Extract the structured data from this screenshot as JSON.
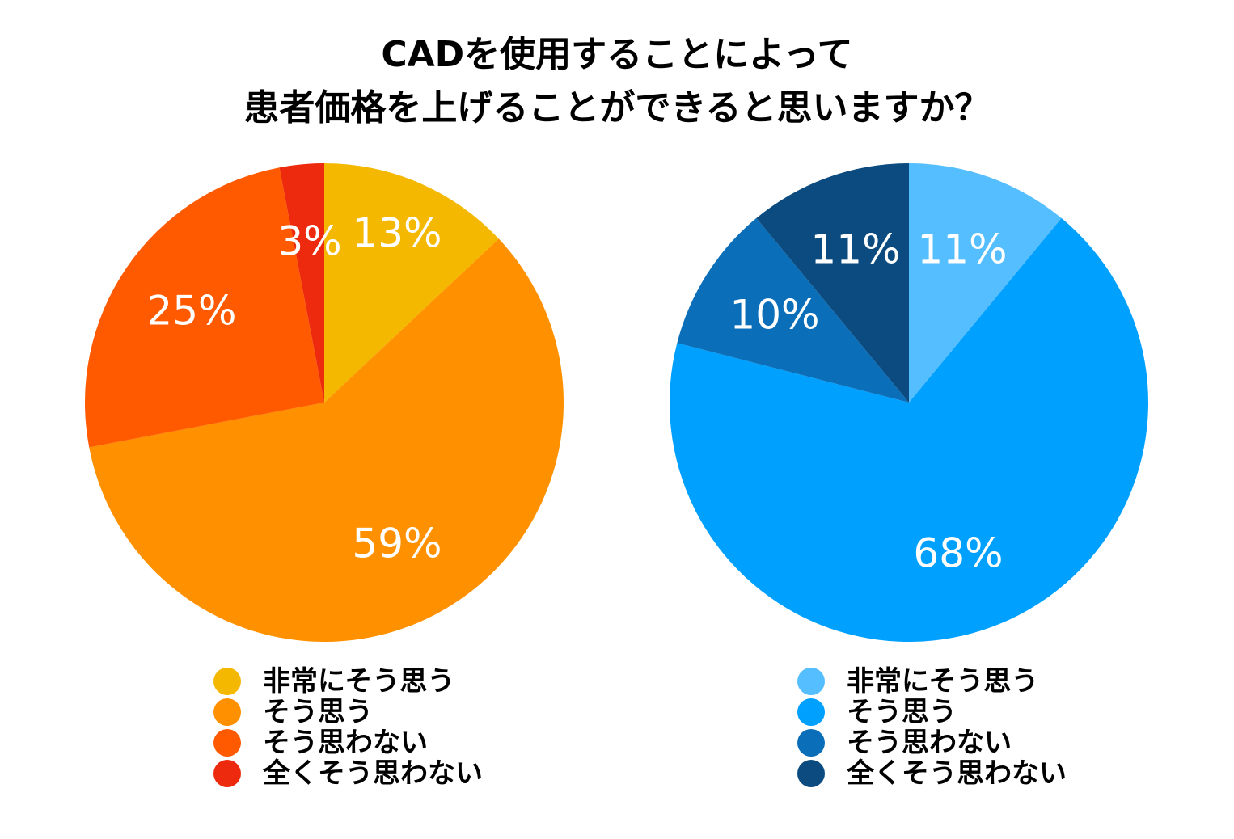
{
  "title": {
    "line1": "CADを使用することによって",
    "line2": "患者価格を上げることができると思いますか？"
  },
  "chart_data": [
    {
      "type": "pie",
      "start_angle_deg": 0,
      "direction": "clockwise",
      "slices": [
        {
          "label": "非常にそう思う",
          "value": 13,
          "display": "13%",
          "color": "#F5B800"
        },
        {
          "label": "そう思う",
          "value": 59,
          "display": "59%",
          "color": "#FF9100"
        },
        {
          "label": "そう思わない",
          "value": 25,
          "display": "25%",
          "color": "#FF5A00"
        },
        {
          "label": "全くそう思わない",
          "value": 3,
          "display": "3%",
          "color": "#EE2A0E"
        }
      ]
    },
    {
      "type": "pie",
      "start_angle_deg": 0,
      "direction": "clockwise",
      "slices": [
        {
          "label": "非常にそう思う",
          "value": 11,
          "display": "11%",
          "color": "#55BEFF"
        },
        {
          "label": "そう思う",
          "value": 68,
          "display": "68%",
          "color": "#00A0FF"
        },
        {
          "label": "そう思わない",
          "value": 10,
          "display": "10%",
          "color": "#0A6FB8"
        },
        {
          "label": "全くそう思わない",
          "value": 11,
          "display": "11%",
          "color": "#0B4B80"
        }
      ]
    }
  ]
}
